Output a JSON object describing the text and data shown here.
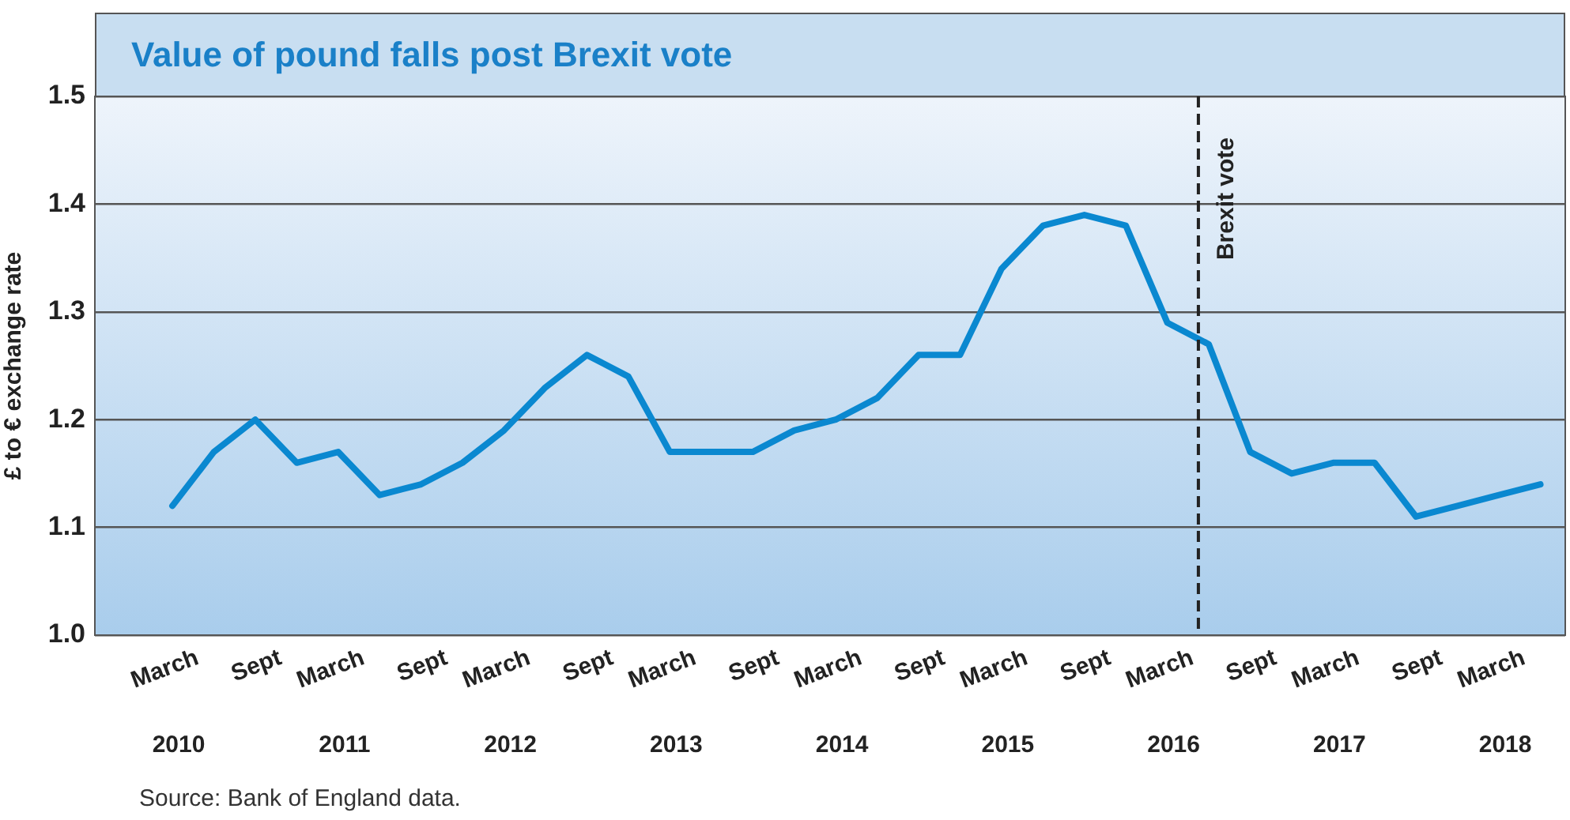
{
  "chart_data": {
    "type": "line",
    "title": "Value of pound falls post Brexit vote",
    "ylabel": "£ to € exchange rate",
    "categories": [
      "March\n2010",
      null,
      "Sept",
      null,
      "March\n2011",
      null,
      "Sept",
      null,
      "March\n2012",
      null,
      "Sept",
      null,
      "March\n2013",
      null,
      "Sept",
      null,
      "March\n2014",
      null,
      "Sept",
      null,
      "March\n2015",
      null,
      "Sept",
      null,
      "March\n2016",
      null,
      "Sept",
      null,
      "March\n2017",
      null,
      "Sept",
      null,
      "March\n2018",
      null
    ],
    "series": [
      {
        "color": "#0a88d0",
        "values": [
          1.12,
          1.17,
          1.2,
          1.16,
          1.17,
          1.13,
          1.14,
          1.16,
          1.19,
          1.23,
          1.26,
          1.24,
          1.17,
          1.17,
          1.17,
          1.19,
          1.2,
          1.22,
          1.26,
          1.26,
          1.34,
          1.38,
          1.39,
          1.38,
          1.29,
          1.27,
          1.17,
          1.15,
          1.16,
          1.16,
          1.11,
          1.12,
          1.13,
          1.14
        ]
      }
    ],
    "ylim": [
      1.0,
      1.5
    ],
    "yticks": [
      {
        "value": 1,
        "label": "1.0"
      },
      1.1,
      1.2,
      1.3,
      1.4,
      1.5
    ],
    "grid": "y",
    "legend": false,
    "annotations": [
      "Brexit vote",
      "Source: Bank of England data."
    ]
  }
}
